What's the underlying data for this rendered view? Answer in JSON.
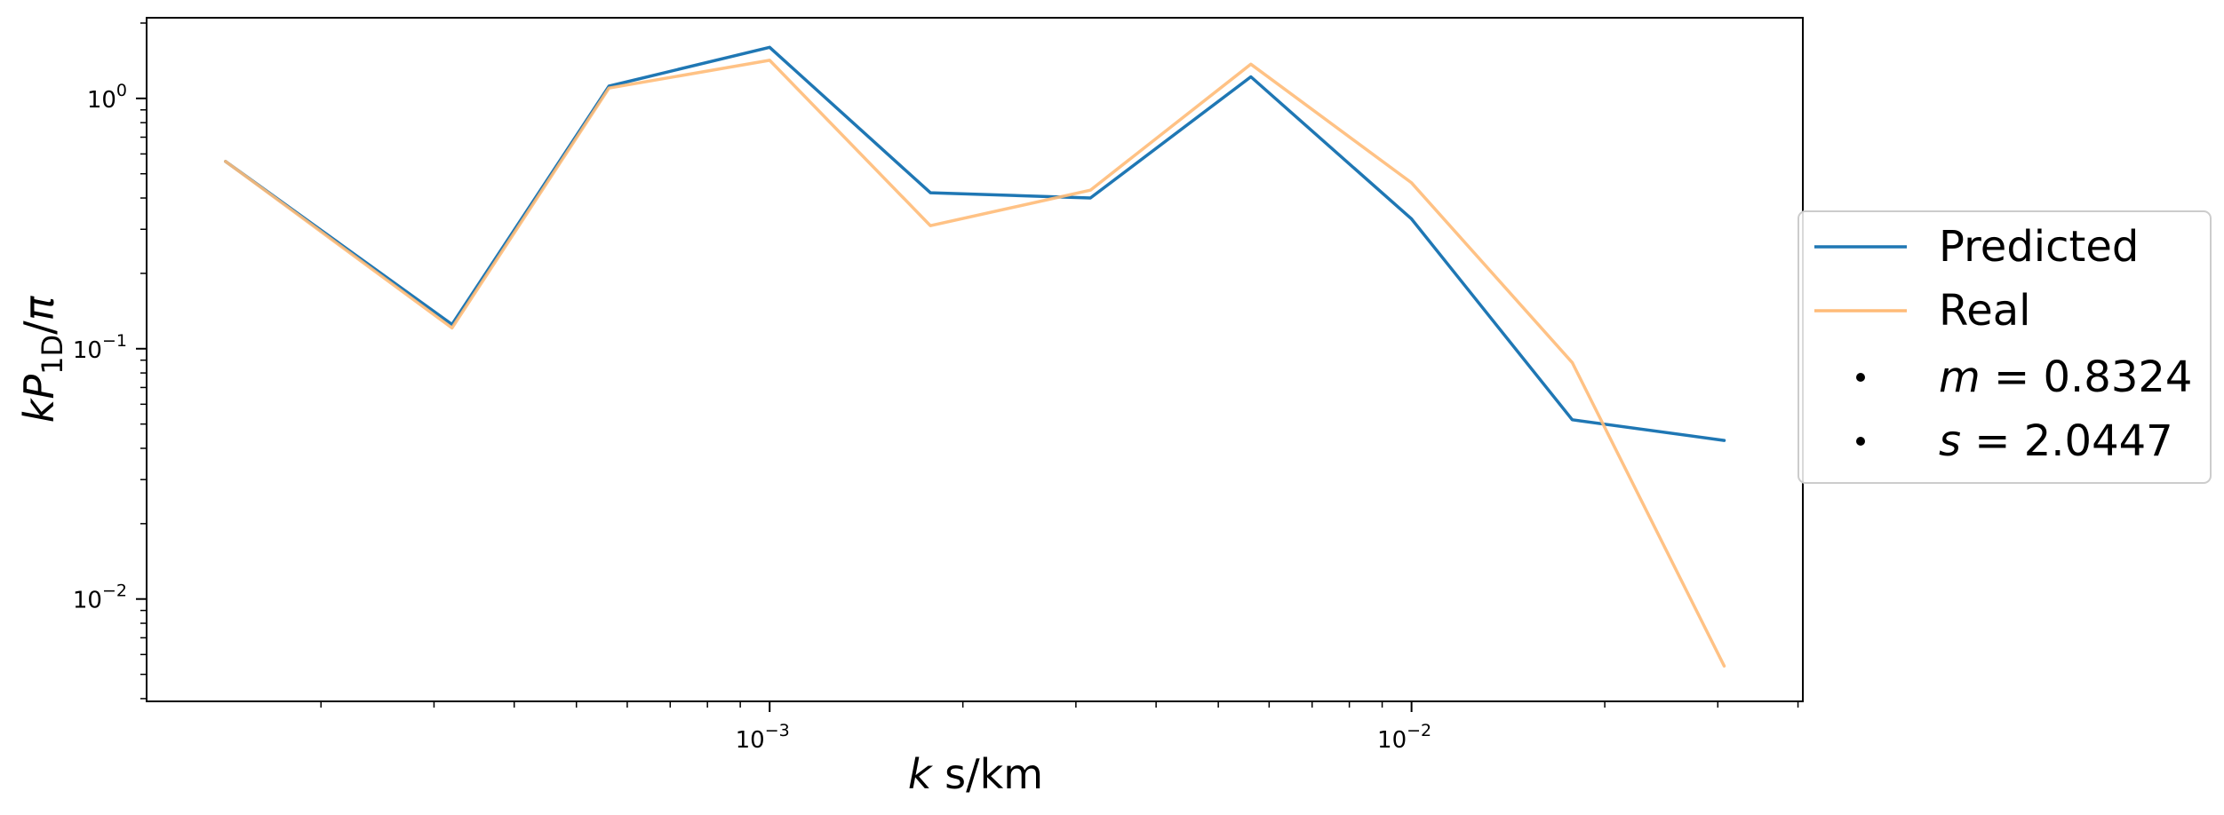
{
  "chart_data": {
    "type": "line",
    "xlabel": "k s/km",
    "ylabel": "kP1D/π",
    "xscale": "log",
    "yscale": "log",
    "xlim": [
      0.000107,
      0.0407
    ],
    "ylim": [
      0.0039,
      2.1
    ],
    "grid": false,
    "legend_position": "right",
    "x": [
      0.000142,
      0.00032,
      0.000562,
      0.001,
      0.00178,
      0.00316,
      0.00562,
      0.01,
      0.0178,
      0.0307
    ],
    "series": [
      {
        "name": "Predicted",
        "color": "#1f77b4",
        "values": [
          0.56,
          0.125,
          1.12,
          1.6,
          0.42,
          0.4,
          1.22,
          0.33,
          0.052,
          0.043
        ]
      },
      {
        "name": "Real",
        "color": "#ffbb78",
        "values": [
          0.56,
          0.121,
          1.1,
          1.42,
          0.31,
          0.43,
          1.37,
          0.46,
          0.088,
          0.0054
        ]
      }
    ],
    "legend_extra": [
      "m = 0.8324",
      "s = 2.0447"
    ],
    "xticks": [
      {
        "value": 0.001,
        "label": "10",
        "exp": "−3"
      },
      {
        "value": 0.01,
        "label": "10",
        "exp": "−2"
      }
    ],
    "yticks": [
      {
        "value": 1,
        "label": "10",
        "exp": "0"
      },
      {
        "value": 0.1,
        "label": "10",
        "exp": "−1"
      },
      {
        "value": 0.01,
        "label": "10",
        "exp": "−2"
      }
    ]
  }
}
